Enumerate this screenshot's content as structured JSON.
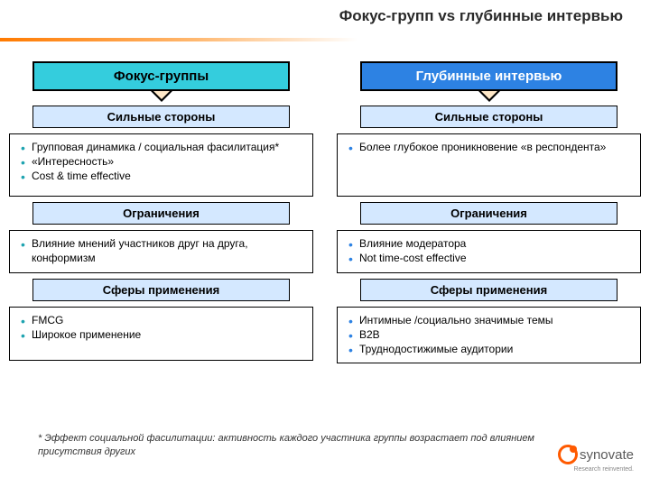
{
  "title": "Фокус-групп vs глубинные интервью",
  "colors": {
    "col1_main_bg": "#34cddd",
    "col2_main_bg": "#2d82e3",
    "col2_main_fg": "#ffffff",
    "section_bg": "#d4e8ff",
    "bullet_col1": "#1ea3b0",
    "bullet_col2": "#2d82e3",
    "accent_orange": "#ff7a00"
  },
  "columns": [
    {
      "main_header": "Фокус-группы",
      "sections": [
        {
          "header": "Сильные стороны",
          "items": [
            "Групповая динамика / социальная фасилитация*",
            "«Интересность»",
            "Cost & time effective"
          ]
        },
        {
          "header": "Ограничения",
          "items": [
            "Влияние мнений участников друг на друга, конформизм"
          ]
        },
        {
          "header": "Сферы применения",
          "items": [
            "FMCG",
            "Широкое применение"
          ]
        }
      ]
    },
    {
      "main_header": "Глубинные интервью",
      "sections": [
        {
          "header": "Сильные стороны",
          "items": [
            "Более глубокое проникновение «в респондента»"
          ]
        },
        {
          "header": "Ограничения",
          "items": [
            "Влияние модератора",
            "Not time-cost effective"
          ]
        },
        {
          "header": "Сферы применения",
          "items": [
            "Интимные /социально значимые темы",
            "B2B",
            "Труднодостижимые аудитории"
          ]
        }
      ]
    }
  ],
  "footnote": "* Эффект социальной фасилитации: активность каждого участника группы возрастает под влиянием присутствия других",
  "logo": {
    "text": "synovate",
    "sub": "Research reinvented."
  },
  "box_heights": {
    "strengths": 70,
    "limits": 48,
    "scope": 60
  }
}
